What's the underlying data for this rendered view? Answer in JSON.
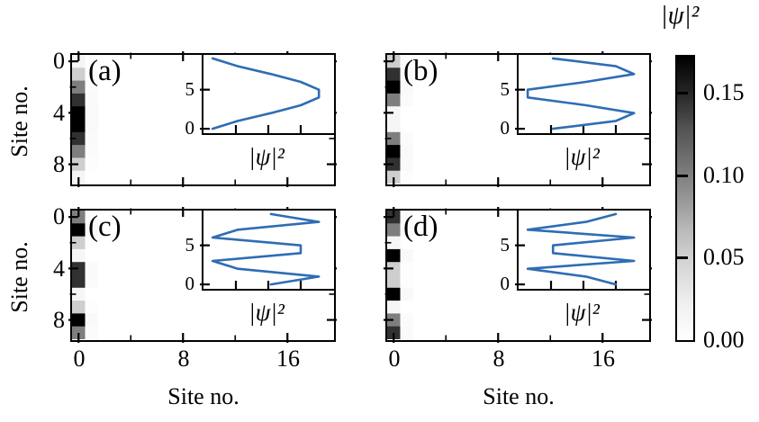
{
  "axes": {
    "xlabel": "Site no.",
    "ylabel": "Site no.",
    "x_tick_labels": [
      "0",
      "8",
      "16"
    ],
    "x_tick_values": [
      0,
      8,
      16
    ],
    "x_minor_ticks": [
      4,
      12
    ],
    "y_tick_labels": [
      "0",
      "4",
      "8"
    ],
    "y_tick_values": [
      0,
      4,
      8
    ],
    "y_minor_ticks": [
      2,
      6
    ],
    "n_cols": 20,
    "n_rows": 10
  },
  "inset": {
    "xlabel": "|ψ|²",
    "y_tick_labels": [
      "5",
      "0"
    ],
    "y_tick_values": [
      5,
      0
    ],
    "x_minor_ticks": [
      0.05,
      0.1,
      0.15
    ],
    "x_range": [
      0,
      0.2
    ],
    "y_range": [
      -0.45,
      9.45
    ],
    "line_color": "#2e6db4"
  },
  "colorbar": {
    "title": "|ψ|²",
    "tick_labels": [
      "0.15",
      "0.10",
      "0.05",
      "0.00"
    ],
    "tick_values": [
      0.15,
      0.1,
      0.05,
      0.0
    ],
    "vmin": 0.0,
    "vmax": 0.172,
    "cmap": "Greys"
  },
  "panels": [
    {
      "label": "(a)",
      "values": [
        0.014,
        0.053,
        0.104,
        0.15,
        0.178,
        0.178,
        0.15,
        0.104,
        0.053,
        0.014
      ],
      "ghost_values": [
        0.0007,
        0.0027,
        0.0052,
        0.0075,
        0.0089,
        0.0089,
        0.0075,
        0.0052,
        0.0027,
        0.0007
      ]
    },
    {
      "label": "(b)",
      "values": [
        0.053,
        0.15,
        0.178,
        0.104,
        0.014,
        0.014,
        0.104,
        0.178,
        0.15,
        0.053
      ],
      "ghost_values": [
        0.0027,
        0.0075,
        0.0089,
        0.0052,
        0.0007,
        0.0007,
        0.0052,
        0.0089,
        0.0075,
        0.0027
      ]
    },
    {
      "label": "(c)",
      "values": [
        0.104,
        0.178,
        0.053,
        0.014,
        0.15,
        0.15,
        0.014,
        0.053,
        0.178,
        0.104
      ],
      "ghost_values": [
        0.0052,
        0.0089,
        0.0027,
        0.0007,
        0.0075,
        0.0075,
        0.0007,
        0.0027,
        0.0089,
        0.0052
      ]
    },
    {
      "label": "(d)",
      "values": [
        0.15,
        0.104,
        0.014,
        0.178,
        0.053,
        0.053,
        0.178,
        0.014,
        0.104,
        0.15
      ],
      "ghost_values": [
        0.0075,
        0.0052,
        0.0007,
        0.0089,
        0.0027,
        0.0027,
        0.0089,
        0.0007,
        0.0052,
        0.0075
      ]
    }
  ],
  "chart_data": {
    "type": "heatmap",
    "description": "Four panels (a)-(d): |psi|^2 of chain eigenmodes 1-4 shown as a grayscale heatmap strip at site-column 0 of a 20x10 grid, each with a line-plot inset of |psi|^2 vs site no.",
    "x": {
      "label": "Site no.",
      "ticks": [
        0,
        8,
        16
      ],
      "minor_ticks": [
        4,
        12
      ],
      "range": [
        0,
        19
      ]
    },
    "y": {
      "label": "Site no.",
      "ticks": [
        0,
        4,
        8
      ],
      "minor_ticks": [
        2,
        6
      ],
      "range": [
        0,
        9
      ],
      "inverted": true
    },
    "colorbar": {
      "label": "|ψ|²",
      "ticks": [
        0.0,
        0.05,
        0.1,
        0.15
      ],
      "range": [
        0.0,
        0.172
      ],
      "colormap": "white-to-black"
    },
    "inset": {
      "type": "line",
      "xlabel": "|ψ|²",
      "x_range": [
        0,
        0.2
      ],
      "x_ticks": [
        0.05,
        0.1,
        0.15
      ],
      "y_ticks": [
        0,
        5
      ],
      "line_color": "#2e6db4"
    },
    "panels": [
      {
        "label": "(a)",
        "mode": 1,
        "sites": [
          0,
          1,
          2,
          3,
          4,
          5,
          6,
          7,
          8,
          9
        ],
        "psi_squared": [
          0.014,
          0.053,
          0.104,
          0.15,
          0.178,
          0.178,
          0.15,
          0.104,
          0.053,
          0.014
        ]
      },
      {
        "label": "(b)",
        "mode": 2,
        "sites": [
          0,
          1,
          2,
          3,
          4,
          5,
          6,
          7,
          8,
          9
        ],
        "psi_squared": [
          0.053,
          0.15,
          0.178,
          0.104,
          0.014,
          0.014,
          0.104,
          0.178,
          0.15,
          0.053
        ]
      },
      {
        "label": "(c)",
        "mode": 3,
        "sites": [
          0,
          1,
          2,
          3,
          4,
          5,
          6,
          7,
          8,
          9
        ],
        "psi_squared": [
          0.104,
          0.178,
          0.053,
          0.014,
          0.15,
          0.15,
          0.014,
          0.053,
          0.178,
          0.104
        ]
      },
      {
        "label": "(d)",
        "mode": 4,
        "sites": [
          0,
          1,
          2,
          3,
          4,
          5,
          6,
          7,
          8,
          9
        ],
        "psi_squared": [
          0.15,
          0.104,
          0.014,
          0.178,
          0.053,
          0.053,
          0.178,
          0.014,
          0.104,
          0.15
        ]
      }
    ]
  }
}
